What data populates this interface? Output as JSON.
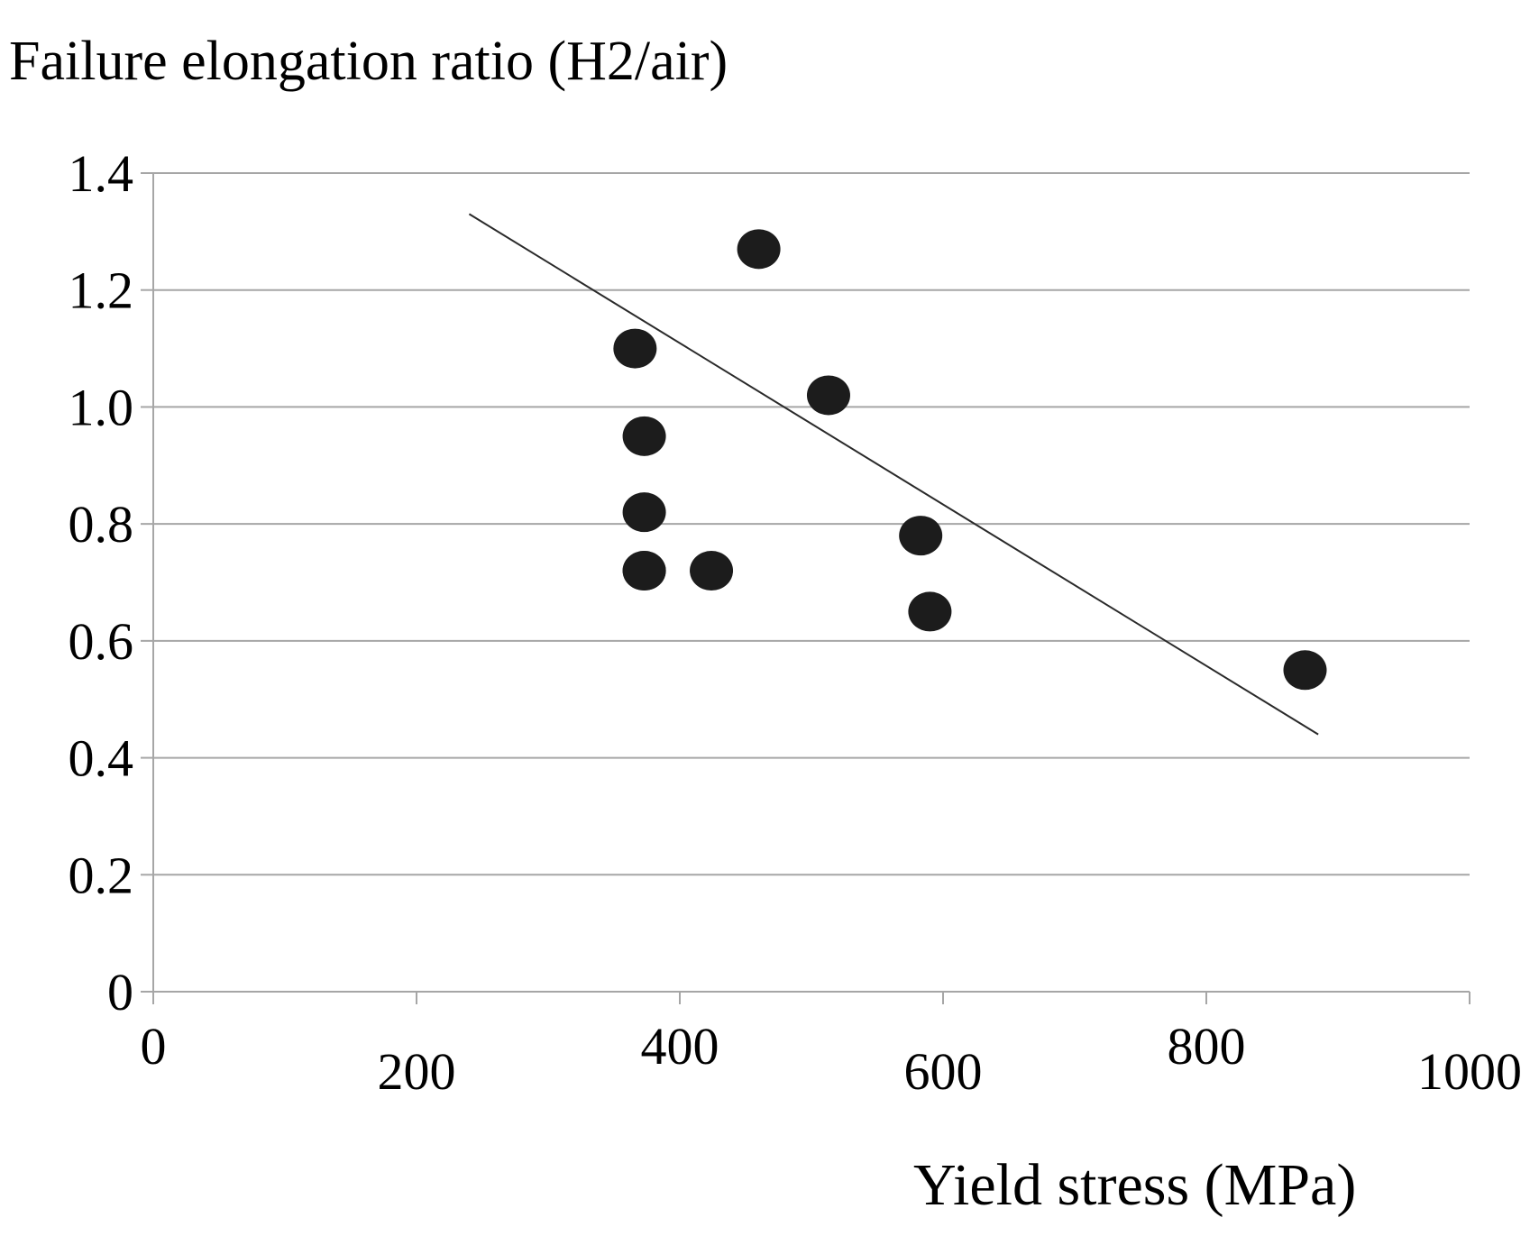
{
  "chart_data": {
    "type": "scatter",
    "title": "",
    "ylabel": "Failure elongation ratio (H2/air)",
    "xlabel": "Yield stress (MPa)",
    "xlim": [
      0,
      1000
    ],
    "ylim": [
      0,
      1.4
    ],
    "x_ticks": [
      0,
      200,
      400,
      600,
      800,
      1000
    ],
    "x_tick_labels": [
      "0",
      "200",
      "400",
      "600",
      "800",
      "1000"
    ],
    "y_ticks": [
      0,
      0.2,
      0.4,
      0.6,
      0.8,
      1.0,
      1.2,
      1.4
    ],
    "y_tick_labels": [
      "0",
      "0.2",
      "0.4",
      "0.6",
      "0.8",
      "1.0",
      "1.2",
      "1.4"
    ],
    "grid": "horizontal",
    "legend": "none",
    "series": [
      {
        "name": "data",
        "x": [
          366,
          373,
          373,
          373,
          373,
          424,
          460,
          513,
          583,
          590,
          875
        ],
        "y": [
          1.1,
          0.95,
          0.82,
          0.72,
          0.72,
          0.72,
          1.27,
          1.02,
          0.78,
          0.65,
          0.55
        ]
      }
    ],
    "trendline": {
      "x": [
        240,
        885
      ],
      "y": [
        1.33,
        0.44
      ]
    },
    "colors": {
      "marker": "#1c1c1c",
      "trendline": "#2a2a2a",
      "grid": "#a6a6a6",
      "axis": "#a6a6a6"
    }
  }
}
